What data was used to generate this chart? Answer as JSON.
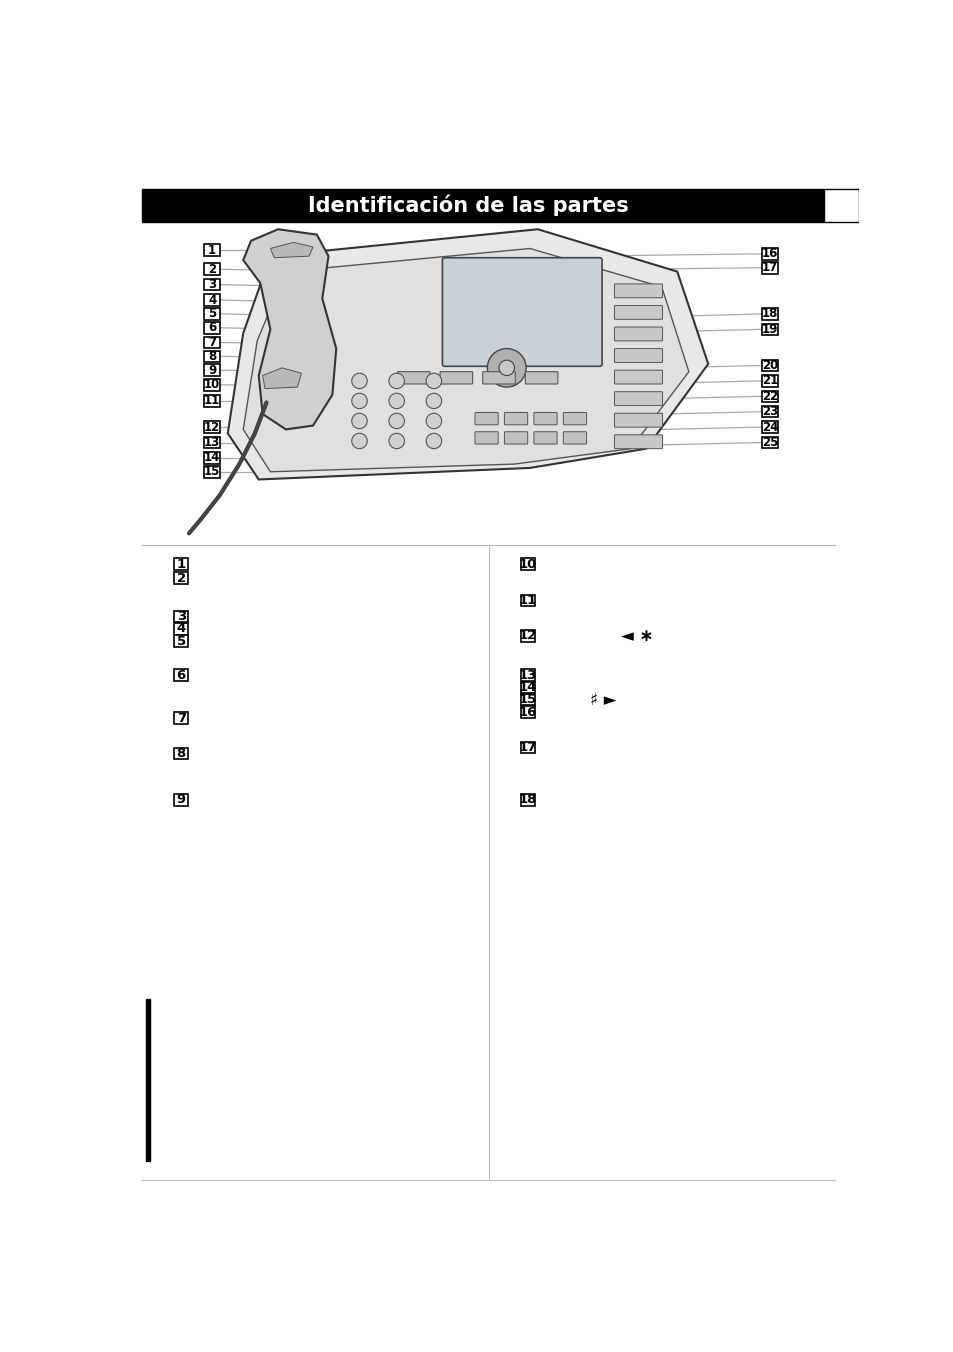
{
  "title": "Identificación de las partes",
  "title_bg": "#000000",
  "title_color": "#ffffff",
  "title_fontsize": 15,
  "page_bg": "#ffffff",
  "left_labels": [
    1,
    2,
    3,
    4,
    5,
    6,
    7,
    8,
    9,
    10,
    11,
    12,
    13,
    14,
    15
  ],
  "right_labels": [
    16,
    17,
    18,
    19,
    20,
    21,
    22,
    23,
    24,
    25
  ],
  "line_color": "#aaaaaa",
  "text_col1_nums": [
    "1",
    "2",
    "3",
    "4",
    "5",
    "6",
    "7",
    "8",
    "9"
  ],
  "text_col2_nums": [
    "10",
    "11",
    "12",
    "13",
    "14",
    "15",
    "16",
    "17",
    "18"
  ],
  "special_12": "◄ ∗",
  "special_15": "♯ ►"
}
